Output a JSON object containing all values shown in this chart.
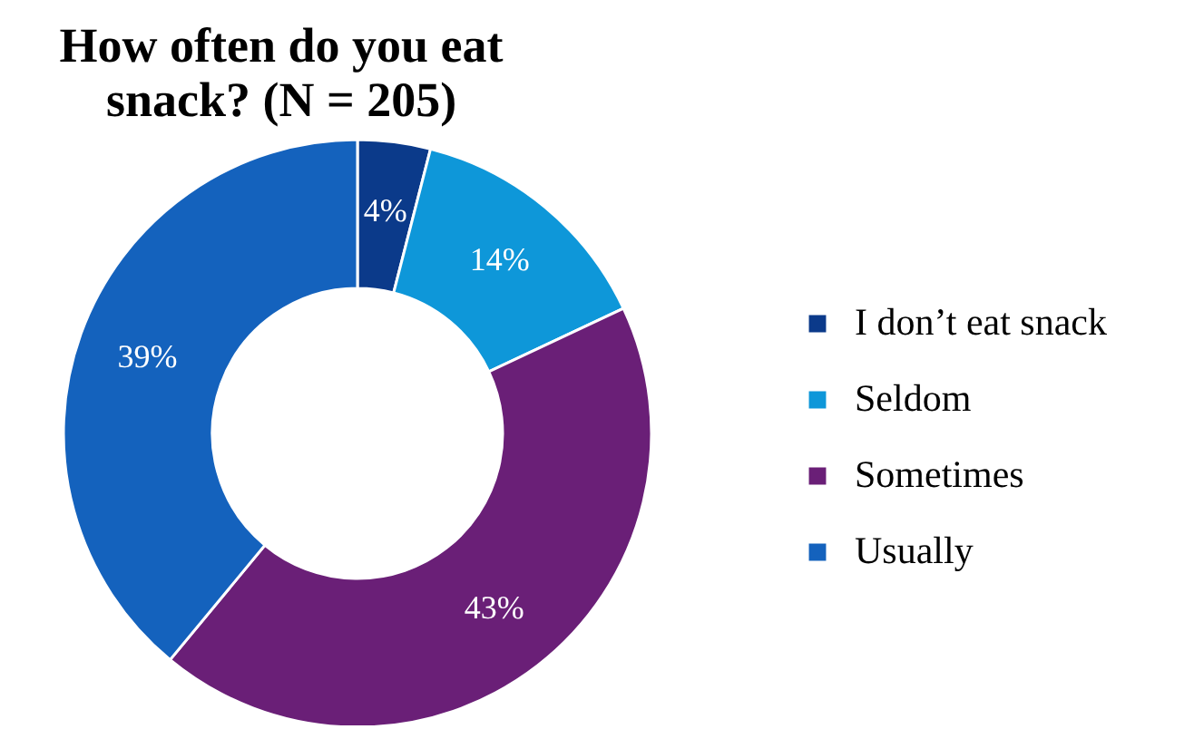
{
  "chart_data": {
    "type": "donut",
    "title": "How often do you eat snack? (N = 205)",
    "categories": [
      "I don’t eat snack",
      "Seldom",
      "Sometimes",
      "Usually"
    ],
    "values": [
      4,
      14,
      43,
      39
    ],
    "colors": [
      "#0b3a8a",
      "#0e97d9",
      "#6a1f77",
      "#1462bd"
    ],
    "value_labels": [
      "4%",
      "14%",
      "43%",
      "39%"
    ],
    "legend": "right"
  }
}
